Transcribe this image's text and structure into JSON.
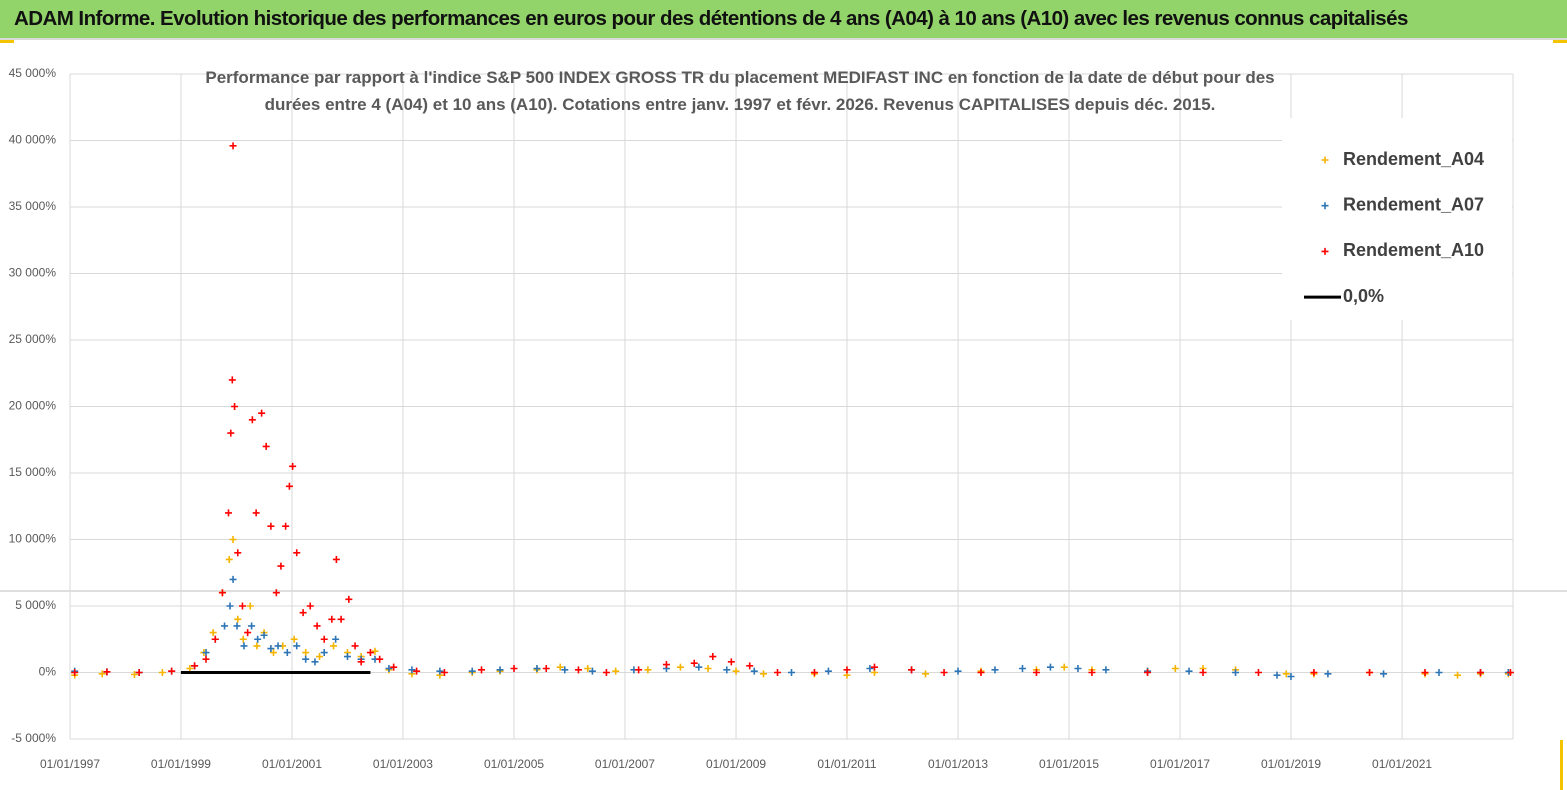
{
  "header": {
    "title": "ADAM Informe. Evolution historique des performances en euros pour des détentions de 4 ans (A04) à 10 ans (A10) avec les revenus connus capitalisés"
  },
  "chart_data": {
    "type": "scatter",
    "title": "Performance par rapport à l'indice S&P 500 INDEX GROSS TR  du placement MEDIFAST INC en fonction de la date de début pour des durées entre 4 (A04) et 10 ans (A10). Cotations entre janv. 1997 et févr. 2026. Revenus CAPITALISES depuis déc. 2015.",
    "xlim": [
      "1997-01-01",
      "2023-01-01"
    ],
    "xticks": [
      {
        "value": "1997-01-01",
        "label": "01/01/1997"
      },
      {
        "value": "1999-01-01",
        "label": "01/01/1999"
      },
      {
        "value": "2001-01-01",
        "label": "01/01/2001"
      },
      {
        "value": "2003-01-01",
        "label": "01/01/2003"
      },
      {
        "value": "2005-01-01",
        "label": "01/01/2005"
      },
      {
        "value": "2007-01-01",
        "label": "01/01/2007"
      },
      {
        "value": "2009-01-01",
        "label": "01/01/2009"
      },
      {
        "value": "2011-01-01",
        "label": "01/01/2011"
      },
      {
        "value": "2013-01-01",
        "label": "01/01/2013"
      },
      {
        "value": "2015-01-01",
        "label": "01/01/2015"
      },
      {
        "value": "2017-01-01",
        "label": "01/01/2017"
      },
      {
        "value": "2019-01-01",
        "label": "01/01/2019"
      },
      {
        "value": "2021-01-01",
        "label": "01/01/2021"
      }
    ],
    "ylim": [
      -5000,
      45000
    ],
    "yticks": [
      {
        "value": -5000,
        "label": "-5 000%"
      },
      {
        "value": 0,
        "label": "0%"
      },
      {
        "value": 5000,
        "label": "5 000%"
      },
      {
        "value": 10000,
        "label": "10 000%"
      },
      {
        "value": 15000,
        "label": "15 000%"
      },
      {
        "value": 20000,
        "label": "20 000%"
      },
      {
        "value": 25000,
        "label": "25 000%"
      },
      {
        "value": 30000,
        "label": "30 000%"
      },
      {
        "value": 35000,
        "label": "35 000%"
      },
      {
        "value": 40000,
        "label": "40 000%"
      },
      {
        "value": 45000,
        "label": "45 000%"
      }
    ],
    "grid": true,
    "legend": "top-right",
    "series": [
      {
        "name": "Rendement_A04",
        "color": "#f5b400",
        "mode": "markers",
        "x": [
          "1997-02-01",
          "1997-08-01",
          "1998-03-01",
          "1998-09-01",
          "1999-03-01",
          "1999-06-01",
          "1999-08-01",
          "1999-10-01",
          "1999-11-15",
          "1999-12-10",
          "2000-01-10",
          "2000-02-15",
          "2000-04-01",
          "2000-05-15",
          "2000-07-01",
          "2000-09-01",
          "2000-11-01",
          "2001-01-15",
          "2001-04-01",
          "2001-07-01",
          "2001-10-01",
          "2002-01-01",
          "2002-04-01",
          "2002-07-01",
          "2002-10-01",
          "2003-03-01",
          "2003-09-01",
          "2004-04-01",
          "2004-10-01",
          "2005-06-01",
          "2005-11-01",
          "2006-05-01",
          "2006-11-01",
          "2007-06-01",
          "2008-01-01",
          "2008-07-01",
          "2009-01-01",
          "2009-07-01",
          "2010-06-01",
          "2011-01-01",
          "2011-07-01",
          "2012-06-01",
          "2013-06-01",
          "2014-06-01",
          "2014-12-01",
          "2015-06-01",
          "2016-06-01",
          "2016-12-01",
          "2017-06-01",
          "2018-01-01",
          "2018-12-01",
          "2019-06-01",
          "2020-06-01",
          "2021-06-01",
          "2022-01-01",
          "2022-06-01",
          "2022-12-01"
        ],
        "values": [
          -200,
          -100,
          -150,
          0,
          300,
          1500,
          3000,
          6000,
          8500,
          10000,
          4000,
          2500,
          5000,
          2000,
          3000,
          1500,
          2000,
          2500,
          1500,
          1200,
          2000,
          1500,
          1200,
          1600,
          200,
          -100,
          -200,
          0,
          100,
          200,
          400,
          300,
          100,
          200,
          400,
          300,
          100,
          -100,
          -100,
          -200,
          0,
          -100,
          100,
          200,
          400,
          200,
          100,
          300,
          300,
          200,
          -100,
          -100,
          0,
          -100,
          -200,
          -100,
          -100
        ]
      },
      {
        "name": "Rendement_A07",
        "color": "#2e75b6",
        "mode": "markers",
        "x": [
          "1997-02-01",
          "1997-09-01",
          "1998-04-01",
          "1998-11-01",
          "1999-04-01",
          "1999-06-15",
          "1999-08-15",
          "1999-10-15",
          "1999-11-20",
          "1999-12-10",
          "2000-01-05",
          "2000-02-20",
          "2000-04-10",
          "2000-05-20",
          "2000-07-01",
          "2000-08-15",
          "2000-10-01",
          "2000-12-01",
          "2001-02-01",
          "2001-04-01",
          "2001-06-01",
          "2001-08-01",
          "2001-10-15",
          "2002-01-01",
          "2002-04-01",
          "2002-07-01",
          "2002-10-01",
          "2003-03-01",
          "2003-09-01",
          "2004-04-01",
          "2004-10-01",
          "2005-06-01",
          "2005-12-01",
          "2006-06-01",
          "2007-03-01",
          "2007-10-01",
          "2008-05-01",
          "2008-11-01",
          "2009-05-01",
          "2010-01-01",
          "2010-09-01",
          "2011-06-01",
          "2012-03-01",
          "2013-01-01",
          "2013-09-01",
          "2014-03-01",
          "2014-09-01",
          "2015-03-01",
          "2015-09-01",
          "2016-06-01",
          "2017-03-01",
          "2018-01-01",
          "2018-10-01",
          "2019-01-01",
          "2019-09-01",
          "2020-09-01",
          "2021-09-01",
          "2022-06-01",
          "2022-12-01"
        ],
        "values": [
          100,
          50,
          0,
          100,
          500,
          1500,
          2500,
          3500,
          5000,
          7000,
          3500,
          2000,
          3500,
          2500,
          2800,
          1800,
          2000,
          1500,
          2000,
          1000,
          800,
          1500,
          2500,
          1200,
          1000,
          1000,
          300,
          200,
          100,
          100,
          200,
          300,
          200,
          100,
          200,
          300,
          400,
          200,
          100,
          0,
          100,
          300,
          200,
          100,
          200,
          300,
          400,
          300,
          200,
          100,
          100,
          0,
          -200,
          -300,
          -100,
          -100,
          0,
          0,
          0
        ]
      },
      {
        "name": "Rendement_A10",
        "color": "#ff0000",
        "mode": "markers",
        "x": [
          "1997-02-01",
          "1997-09-01",
          "1998-04-01",
          "1998-11-01",
          "1999-04-01",
          "1999-06-15",
          "1999-08-15",
          "1999-10-01",
          "1999-11-10",
          "1999-11-25",
          "1999-12-05",
          "1999-12-10",
          "1999-12-20",
          "2000-01-10",
          "2000-02-10",
          "2000-03-15",
          "2000-04-15",
          "2000-05-10",
          "2000-06-15",
          "2000-07-15",
          "2000-08-15",
          "2000-09-20",
          "2000-10-20",
          "2000-11-20",
          "2000-12-15",
          "2001-01-05",
          "2001-02-01",
          "2001-03-15",
          "2001-05-01",
          "2001-06-15",
          "2001-08-01",
          "2001-09-20",
          "2001-10-20",
          "2001-11-20",
          "2002-01-10",
          "2002-02-20",
          "2002-04-01",
          "2002-06-01",
          "2002-08-01",
          "2002-11-01",
          "2003-04-01",
          "2003-10-01",
          "2004-06-01",
          "2005-01-01",
          "2005-08-01",
          "2006-03-01",
          "2006-09-01",
          "2007-04-01",
          "2007-10-01",
          "2008-04-01",
          "2008-08-01",
          "2008-12-01",
          "2009-04-01",
          "2009-10-01",
          "2010-06-01",
          "2011-01-01",
          "2011-07-01",
          "2012-03-01",
          "2012-10-01",
          "2013-06-01",
          "2014-06-01",
          "2015-06-01",
          "2016-06-01",
          "2017-06-01",
          "2018-06-01",
          "2019-06-01",
          "2020-06-01",
          "2021-06-01",
          "2022-06-01",
          "2022-12-15"
        ],
        "values": [
          0,
          50,
          0,
          100,
          500,
          1000,
          2500,
          6000,
          12000,
          18000,
          22000,
          39600,
          20000,
          9000,
          5000,
          3000,
          19000,
          12000,
          19500,
          17000,
          11000,
          6000,
          8000,
          11000,
          14000,
          15500,
          9000,
          4500,
          5000,
          3500,
          2500,
          4000,
          8500,
          4000,
          5500,
          2000,
          800,
          1500,
          1000,
          400,
          100,
          0,
          200,
          300,
          300,
          200,
          0,
          200,
          600,
          700,
          1200,
          800,
          500,
          0,
          0,
          200,
          400,
          200,
          0,
          0,
          0,
          0,
          0,
          0,
          0,
          0,
          0,
          0,
          0,
          0
        ]
      },
      {
        "name": "0,0%",
        "color": "#000000",
        "mode": "line",
        "x": [
          "1999-01-01",
          "2002-06-01"
        ],
        "values": [
          0,
          0
        ]
      }
    ]
  }
}
